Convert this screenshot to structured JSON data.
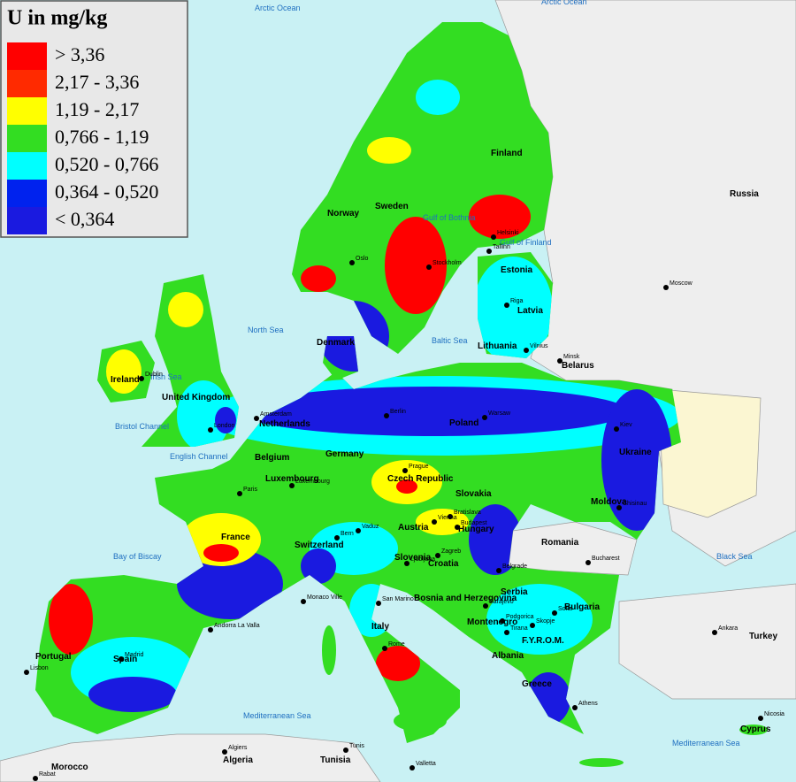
{
  "legend": {
    "title": "U in mg/kg",
    "items": [
      {
        "label": "> 3,36",
        "color": "#ff0000"
      },
      {
        "label": "2,17 - 3,36",
        "color": "#ff2a00"
      },
      {
        "label": "1,19 - 2,17",
        "color": "#ffff00"
      },
      {
        "label": "0,766 - 1,19",
        "color": "#33dd22"
      },
      {
        "label": "0,520 - 0,766",
        "color": "#00ffff"
      },
      {
        "label": "0,364 - 0,520",
        "color": "#0022ee"
      },
      {
        "label": "< 0,364",
        "color": "#1a1ae0"
      }
    ]
  },
  "seas": [
    "Arctic Ocean",
    "Arctic Ocean",
    "Gulf of Bothnia",
    "Gulf of Finland",
    "North Sea",
    "Baltic Sea",
    "Irish Sea",
    "Bristol Channel",
    "English Channel",
    "Bay of Biscay",
    "Black Sea",
    "Mediterranean Sea",
    "Mediterranean Sea"
  ],
  "countries": [
    "Russia",
    "Finland",
    "Norway",
    "Sweden",
    "Estonia",
    "Latvia",
    "Lithuania",
    "Belarus",
    "Denmark",
    "Ireland",
    "United Kingdom",
    "Netherlands",
    "Poland",
    "Ukraine",
    "Belgium",
    "Germany",
    "Luxembourg",
    "Czech Republic",
    "Slovakia",
    "Moldova",
    "France",
    "Switzerland",
    "Austria",
    "Hungary",
    "Romania",
    "Slovenia",
    "Croatia",
    "Serbia",
    "Bosnia and Herzegovina",
    "Bulgaria",
    "Montenegro",
    "Italy",
    "F.Y.R.O.M.",
    "Albania",
    "Portugal",
    "Spain",
    "Greece",
    "Turkey",
    "Cyprus",
    "Morocco",
    "Algeria",
    "Tunisia"
  ],
  "cities": [
    "Oslo",
    "Stockholm",
    "Helsinki",
    "Tallinn",
    "Moscow",
    "Riga",
    "Vilnius",
    "Minsk",
    "Dublin",
    "London",
    "Amsterdam",
    "Berlin",
    "Warsaw",
    "Kiev",
    "Prague",
    "Paris",
    "Luxembourg",
    "Bern",
    "Vaduz",
    "Vienna",
    "Bratislava",
    "Budapest",
    "Chisinau",
    "Zagreb",
    "Ljubljana",
    "Belgrade",
    "Bucharest",
    "Sarajevo",
    "Podgorica",
    "Tirana",
    "Skopje",
    "Sofia",
    "Rome",
    "Monaco Ville",
    "San Marino",
    "Andorra La Valla",
    "Madrid",
    "Lisbon",
    "Athens",
    "Ankara",
    "Nicosia",
    "Algiers",
    "Tunis",
    "Valletta",
    "Rabat"
  ]
}
